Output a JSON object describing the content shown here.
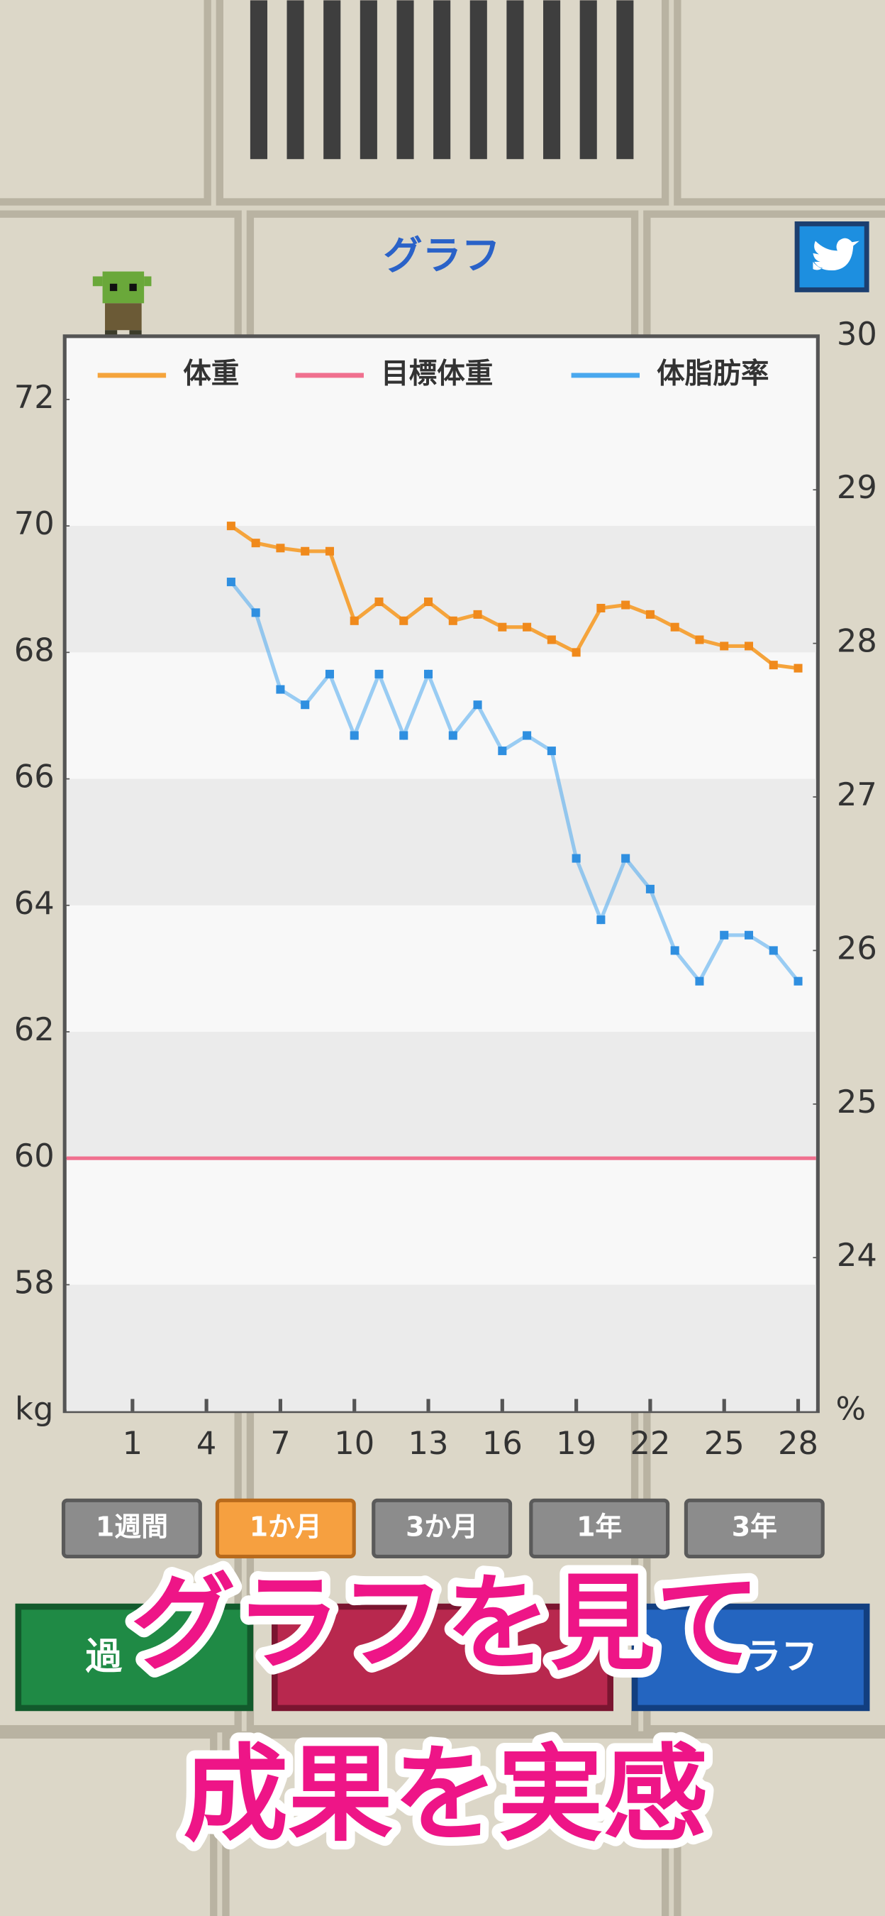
{
  "header": {
    "title": "グラフ"
  },
  "chart_data": {
    "type": "line",
    "x": [
      5,
      6,
      7,
      8,
      9,
      10,
      11,
      12,
      13,
      14,
      15,
      16,
      17,
      18,
      19,
      20,
      21,
      22,
      23,
      24,
      25,
      26,
      27,
      28
    ],
    "series": [
      {
        "name": "体重",
        "color": "#f5a43c",
        "values": [
          70.0,
          69.73,
          69.65,
          69.6,
          69.6,
          68.5,
          68.8,
          68.5,
          68.8,
          68.5,
          68.6,
          68.4,
          68.4,
          68.2,
          68.0,
          68.7,
          68.75,
          68.6,
          68.4,
          68.2,
          68.1,
          68.1,
          67.8,
          67.75
        ]
      },
      {
        "name": "体脂肪率",
        "color": "#4aa8ee",
        "axis": "y2",
        "values": [
          28.4,
          28.2,
          27.7,
          27.6,
          27.8,
          27.4,
          27.8,
          27.4,
          27.8,
          27.4,
          27.6,
          27.3,
          27.4,
          27.3,
          26.6,
          26.2,
          26.6,
          26.4,
          26.0,
          25.8,
          26.1,
          26.1,
          26.0,
          25.8
        ]
      }
    ],
    "target": {
      "name": "目標体重",
      "color": "#f0708f",
      "value": 60
    },
    "xlim": [
      -1.75,
      28.8
    ],
    "xticks": [
      1,
      4,
      7,
      10,
      13,
      16,
      19,
      22,
      25,
      28
    ],
    "ylim": [
      56,
      73
    ],
    "yticks": [
      58,
      60,
      62,
      64,
      66,
      68,
      70,
      72
    ],
    "y_label": "kg",
    "y2lim": [
      23,
      30
    ],
    "y2ticks": [
      24,
      25,
      26,
      27,
      28,
      29,
      30
    ],
    "y2_label": "%",
    "grid": true
  },
  "periods": {
    "options": [
      "1週間",
      "1か月",
      "3か月",
      "1年",
      "3年"
    ],
    "selected": 1
  },
  "nav": [
    "過",
    "ラフ"
  ],
  "promo": [
    "グラフを見て",
    "成果を実感"
  ]
}
